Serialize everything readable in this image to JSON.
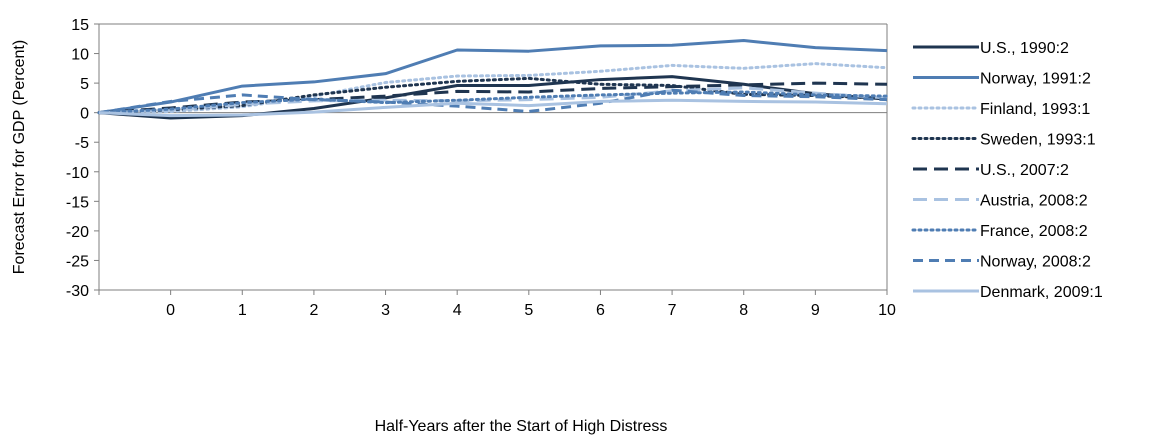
{
  "chart_data": {
    "type": "line",
    "title": "",
    "xlabel": "Half-Years after the Start of High Distress",
    "ylabel": "Forecast Error for GDP (Percent)",
    "ylim": [
      -30,
      15
    ],
    "yticks": [
      15,
      10,
      5,
      0,
      -5,
      -10,
      -15,
      -20,
      -25,
      -30
    ],
    "x": [
      -1,
      0,
      1,
      2,
      3,
      4,
      5,
      6,
      7,
      8,
      9,
      10
    ],
    "xtick_labels": [
      "0",
      "1",
      "2",
      "3",
      "4",
      "5",
      "6",
      "7",
      "8",
      "9",
      "10"
    ],
    "xtick_values": [
      0,
      1,
      2,
      3,
      4,
      5,
      6,
      7,
      8,
      9,
      10
    ],
    "grid": false,
    "legend_position": "right",
    "series": [
      {
        "name": "U.S., 1990:2",
        "color": "#1f3550",
        "dash": "solid",
        "values": [
          0,
          -0.9,
          -0.5,
          0.7,
          2.5,
          4.6,
          4.6,
          5.6,
          6.1,
          4.8,
          3.2,
          2.3
        ]
      },
      {
        "name": "Norway, 1991:2",
        "color": "#4f7db3",
        "dash": "solid",
        "values": [
          0,
          1.8,
          4.5,
          5.2,
          6.6,
          10.6,
          10.4,
          11.3,
          11.4,
          12.2,
          11.0,
          10.5
        ]
      },
      {
        "name": "Finland, 1993:1",
        "color": "#a9c2e1",
        "dash": "dot",
        "values": [
          0,
          0.2,
          1.0,
          2.8,
          5.1,
          6.2,
          6.3,
          7.0,
          8.0,
          7.5,
          8.3,
          7.6
        ]
      },
      {
        "name": "Sweden, 1993:1",
        "color": "#1f3550",
        "dash": "dot",
        "values": [
          0,
          0.5,
          1.2,
          3.0,
          4.3,
          5.3,
          5.8,
          4.8,
          4.6,
          3.1,
          2.9,
          2.4
        ]
      },
      {
        "name": "U.S., 2007:2",
        "color": "#1f3550",
        "dash": "longdash",
        "values": [
          0,
          0.8,
          1.8,
          2.2,
          2.8,
          3.6,
          3.5,
          4.1,
          4.4,
          4.7,
          5.0,
          4.8
        ]
      },
      {
        "name": "Austria, 2008:2",
        "color": "#a9c2e1",
        "dash": "longdash",
        "values": [
          0,
          0.4,
          1.4,
          2.0,
          2.1,
          2.0,
          2.2,
          2.6,
          3.7,
          4.2,
          3.3,
          2.5
        ]
      },
      {
        "name": "France, 2008:2",
        "color": "#4f7db3",
        "dash": "dot",
        "values": [
          0,
          0.6,
          1.7,
          2.3,
          1.7,
          2.1,
          2.6,
          3.0,
          3.3,
          3.5,
          3.0,
          2.8
        ]
      },
      {
        "name": "Norway, 2008:2",
        "color": "#4f7db3",
        "dash": "dash",
        "values": [
          0,
          1.9,
          3.0,
          2.2,
          1.8,
          1.1,
          0.2,
          1.6,
          3.8,
          2.9,
          2.7,
          2.2
        ]
      },
      {
        "name": "Denmark, 2009:1",
        "color": "#a9c2e1",
        "dash": "solid",
        "values": [
          0,
          -0.5,
          -0.4,
          0.1,
          0.9,
          1.6,
          1.2,
          1.9,
          2.1,
          1.9,
          1.8,
          1.5
        ]
      }
    ]
  }
}
